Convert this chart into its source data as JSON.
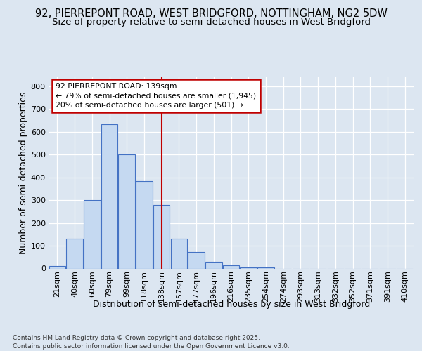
{
  "title1": "92, PIERREPONT ROAD, WEST BRIDGFORD, NOTTINGHAM, NG2 5DW",
  "title2": "Size of property relative to semi-detached houses in West Bridgford",
  "xlabel": "Distribution of semi-detached houses by size in West Bridgford",
  "ylabel": "Number of semi-detached properties",
  "categories": [
    "21sqm",
    "40sqm",
    "60sqm",
    "79sqm",
    "99sqm",
    "118sqm",
    "138sqm",
    "157sqm",
    "177sqm",
    "196sqm",
    "216sqm",
    "235sqm",
    "254sqm",
    "274sqm",
    "293sqm",
    "313sqm",
    "332sqm",
    "352sqm",
    "371sqm",
    "391sqm",
    "410sqm"
  ],
  "bar_heights": [
    10,
    130,
    300,
    635,
    500,
    385,
    280,
    130,
    72,
    28,
    13,
    6,
    5,
    0,
    0,
    0,
    0,
    0,
    0,
    0,
    0
  ],
  "bar_color": "#c5d9f1",
  "bar_edge_color": "#4472c4",
  "vline_x_index": 6,
  "vline_color": "#c00000",
  "annotation_line1": "92 PIERREPONT ROAD: 139sqm",
  "annotation_line2": "← 79% of semi-detached houses are smaller (1,945)",
  "annotation_line3": "20% of semi-detached houses are larger (501) →",
  "annotation_box_color": "#ffffff",
  "annotation_box_edge": "#c00000",
  "ylim": [
    0,
    840
  ],
  "yticks": [
    0,
    100,
    200,
    300,
    400,
    500,
    600,
    700,
    800
  ],
  "footer": "Contains HM Land Registry data © Crown copyright and database right 2025.\nContains public sector information licensed under the Open Government Licence v3.0.",
  "bg_color": "#dce6f1",
  "plot_bg_color": "#dce6f1",
  "grid_color": "#ffffff",
  "title_fontsize": 10.5,
  "subtitle_fontsize": 9.5,
  "axis_label_fontsize": 9,
  "tick_fontsize": 8,
  "footer_fontsize": 6.5
}
